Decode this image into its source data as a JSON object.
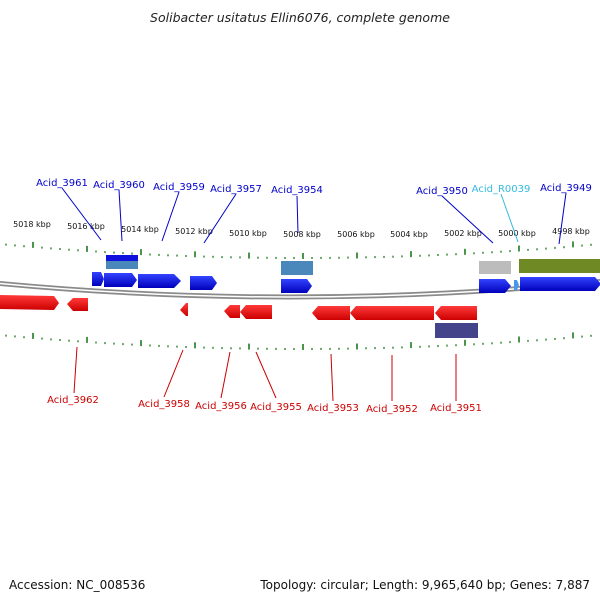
{
  "title": "Solibacter usitatus Ellin6076, complete genome",
  "footer": {
    "accession": "Accession: NC_008536",
    "summary": "Topology: circular; Length: 9,965,640 bp; Genes: 7,887"
  },
  "scale": {
    "labels": [
      "5018 kbp",
      "5016 kbp",
      "5014 kbp",
      "5012 kbp",
      "5010 kbp",
      "5008 kbp",
      "5006 kbp",
      "5004 kbp",
      "5002 kbp",
      "5000 kbp",
      "4998 kbp"
    ]
  },
  "features_forward": [
    {
      "label": "Acid_3961",
      "color": "#0000cc"
    },
    {
      "label": "Acid_3960",
      "color": "#0000cc"
    },
    {
      "label": "Acid_3959",
      "color": "#0000cc"
    },
    {
      "label": "Acid_3957",
      "color": "#0000cc"
    },
    {
      "label": "Acid_3954",
      "color": "#0000cc"
    },
    {
      "label": "Acid_3950",
      "color": "#0000cc"
    },
    {
      "label": "Acid_R0039",
      "color": "#33bbdd"
    },
    {
      "label": "Acid_3949",
      "color": "#0000cc"
    }
  ],
  "features_reverse": [
    {
      "label": "Acid_3962",
      "color": "#cc0000"
    },
    {
      "label": "Acid_3958",
      "color": "#cc0000"
    },
    {
      "label": "Acid_3956",
      "color": "#cc0000"
    },
    {
      "label": "Acid_3955",
      "color": "#cc0000"
    },
    {
      "label": "Acid_3953",
      "color": "#cc0000"
    },
    {
      "label": "Acid_3952",
      "color": "#cc0000"
    },
    {
      "label": "Acid_3951",
      "color": "#cc0000"
    }
  ],
  "colors": {
    "cds_forward": "#0a18e8",
    "cds_reverse": "#ee1111",
    "rna": "#bcbcbc",
    "gene_block": "#4a88bb",
    "repeat_block": "#6f8a25",
    "misc_block": "#44448a",
    "backbone": "#888888",
    "tick": "#1e7a1e"
  }
}
